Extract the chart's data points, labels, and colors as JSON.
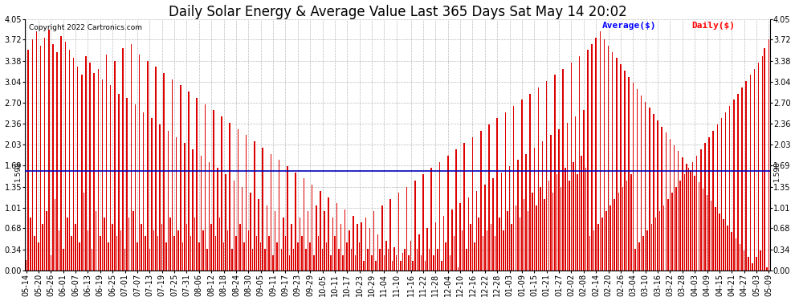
{
  "title": "Daily Solar Energy & Average Value Last 365 Days Sat May 14 20:02",
  "copyright": "Copyright 2022 Cartronics.com",
  "legend_average": "Average($)",
  "legend_daily": "Daily($)",
  "average_value": 1.598,
  "average_label": "1.598",
  "ylim": [
    0.0,
    4.05
  ],
  "yticks": [
    0.0,
    0.34,
    0.68,
    1.01,
    1.35,
    1.69,
    2.03,
    2.36,
    2.7,
    3.04,
    3.38,
    3.72,
    4.05
  ],
  "bar_color": "#dd0000",
  "avg_line_color": "#0000bb",
  "background_color": "#ffffff",
  "grid_color": "#bbbbbb",
  "x_labels": [
    "05-14",
    "05-20",
    "05-26",
    "06-01",
    "06-07",
    "06-13",
    "06-19",
    "06-25",
    "07-01",
    "07-07",
    "07-13",
    "07-19",
    "07-25",
    "07-31",
    "08-06",
    "08-12",
    "08-18",
    "08-24",
    "08-30",
    "09-05",
    "09-11",
    "09-17",
    "09-23",
    "09-29",
    "10-05",
    "10-11",
    "10-17",
    "10-23",
    "10-29",
    "11-04",
    "11-10",
    "11-16",
    "11-22",
    "11-28",
    "12-04",
    "12-10",
    "12-16",
    "12-22",
    "12-28",
    "01-03",
    "01-09",
    "01-15",
    "01-21",
    "01-27",
    "02-02",
    "02-08",
    "02-14",
    "02-20",
    "02-26",
    "03-04",
    "03-10",
    "03-16",
    "03-22",
    "03-28",
    "04-03",
    "04-09",
    "04-15",
    "04-21",
    "04-27",
    "05-03",
    "05-09"
  ],
  "daily_values": [
    0.17,
    3.55,
    0.85,
    3.72,
    0.55,
    3.85,
    0.45,
    3.62,
    0.75,
    3.75,
    0.95,
    3.88,
    0.25,
    3.65,
    1.15,
    3.52,
    0.65,
    3.78,
    0.35,
    3.68,
    0.85,
    3.55,
    0.55,
    3.42,
    0.75,
    3.28,
    0.45,
    3.15,
    1.25,
    3.45,
    0.65,
    3.35,
    0.35,
    3.18,
    0.95,
    3.25,
    0.55,
    3.08,
    0.85,
    3.48,
    0.45,
    2.98,
    0.75,
    3.38,
    0.55,
    2.85,
    0.65,
    3.58,
    0.35,
    2.78,
    0.85,
    3.65,
    0.95,
    2.68,
    0.45,
    3.48,
    0.75,
    2.55,
    0.55,
    3.38,
    0.35,
    2.45,
    0.65,
    3.28,
    0.55,
    2.35,
    0.75,
    3.18,
    0.45,
    2.25,
    0.85,
    3.08,
    0.55,
    2.15,
    0.65,
    2.98,
    0.45,
    2.05,
    0.75,
    2.88,
    0.55,
    1.95,
    0.85,
    2.78,
    0.45,
    1.85,
    0.65,
    2.68,
    0.35,
    1.75,
    0.75,
    2.58,
    0.55,
    1.65,
    0.85,
    2.48,
    0.45,
    1.55,
    0.65,
    2.38,
    0.35,
    1.45,
    0.55,
    2.28,
    0.75,
    1.35,
    0.45,
    2.18,
    0.65,
    1.25,
    0.35,
    2.08,
    0.55,
    1.15,
    0.45,
    1.98,
    0.35,
    1.05,
    0.55,
    1.88,
    0.25,
    0.95,
    0.45,
    1.78,
    0.35,
    0.85,
    0.55,
    1.68,
    0.25,
    0.75,
    0.35,
    1.58,
    0.45,
    0.85,
    0.55,
    1.48,
    0.35,
    0.95,
    0.45,
    1.38,
    0.25,
    1.05,
    0.55,
    1.28,
    0.35,
    0.95,
    0.45,
    1.18,
    0.25,
    0.85,
    0.55,
    1.08,
    0.35,
    0.75,
    0.25,
    0.98,
    0.45,
    0.65,
    0.35,
    0.88,
    0.25,
    0.75,
    0.45,
    0.78,
    0.15,
    0.85,
    0.35,
    0.68,
    0.25,
    0.95,
    0.15,
    0.58,
    0.35,
    1.05,
    0.25,
    0.48,
    0.35,
    1.15,
    0.15,
    0.38,
    0.25,
    1.25,
    0.15,
    0.28,
    0.35,
    1.35,
    0.25,
    0.48,
    0.15,
    1.45,
    0.35,
    0.58,
    0.25,
    1.55,
    0.15,
    0.68,
    0.35,
    1.65,
    0.25,
    0.78,
    0.35,
    1.75,
    0.15,
    0.88,
    0.45,
    1.85,
    0.25,
    0.98,
    0.55,
    1.95,
    0.05,
    1.08,
    0.65,
    2.05,
    0.35,
    1.18,
    0.75,
    2.15,
    0.45,
    1.28,
    0.85,
    2.25,
    0.55,
    1.38,
    0.65,
    2.35,
    0.75,
    1.48,
    0.55,
    2.45,
    0.85,
    1.58,
    0.65,
    2.55,
    0.95,
    1.68,
    0.75,
    2.65,
    1.05,
    1.78,
    0.85,
    2.75,
    1.15,
    1.88,
    0.95,
    2.85,
    1.25,
    1.98,
    1.05,
    2.95,
    1.35,
    2.08,
    1.15,
    3.05,
    1.45,
    2.18,
    1.25,
    3.15,
    1.55,
    2.28,
    1.35,
    3.25,
    1.65,
    2.38,
    1.45,
    3.35,
    1.75,
    2.48,
    1.55,
    3.45,
    1.85,
    2.58,
    1.65,
    3.55,
    0.55,
    3.65,
    0.65,
    3.75,
    0.75,
    3.85,
    0.85,
    3.72,
    0.95,
    3.62,
    1.05,
    3.52,
    1.15,
    3.42,
    1.25,
    3.32,
    1.35,
    3.22,
    1.45,
    3.12,
    1.55,
    3.02,
    0.35,
    2.92,
    0.45,
    2.82,
    0.55,
    2.72,
    0.65,
    2.62,
    0.75,
    2.52,
    0.85,
    2.42,
    0.95,
    2.32,
    1.05,
    2.22,
    1.15,
    2.12,
    1.25,
    2.02,
    1.35,
    1.92,
    1.45,
    1.82,
    1.55,
    1.72,
    1.65,
    1.62,
    1.75,
    1.52,
    1.85,
    1.42,
    1.95,
    1.32,
    2.05,
    1.22,
    2.15,
    1.12,
    2.25,
    1.02,
    2.35,
    0.92,
    2.45,
    0.82,
    2.55,
    0.72,
    2.65,
    0.62,
    2.75,
    0.52,
    2.85,
    0.42,
    2.95,
    0.32,
    3.05,
    0.22,
    3.15,
    0.12,
    3.25,
    0.22,
    3.35,
    0.32,
    3.45,
    3.58,
    0.05,
    3.72
  ],
  "title_fontsize": 12,
  "tick_fontsize": 7,
  "bar_width": 0.6
}
